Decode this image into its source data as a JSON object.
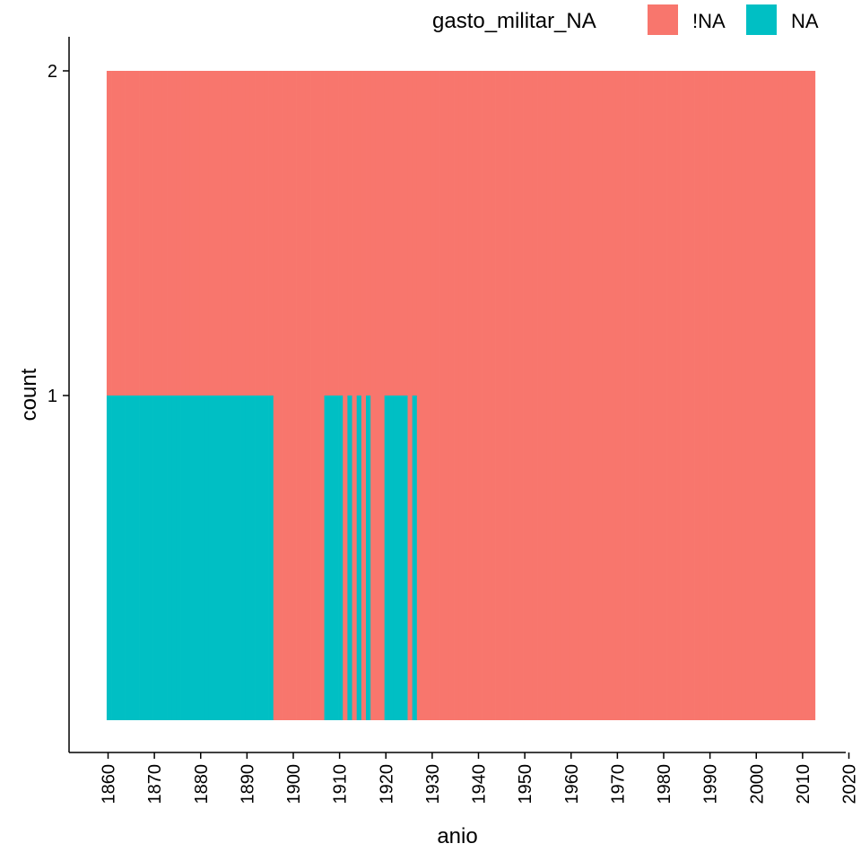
{
  "chart_data": {
    "type": "bar",
    "stacked": true,
    "title": "",
    "xlabel": "anio",
    "ylabel": "count",
    "xlim": [
      1859.5,
      2012.5
    ],
    "ylim": [
      0,
      2
    ],
    "x_ticks": [
      1860,
      1870,
      1880,
      1890,
      1900,
      1910,
      1920,
      1930,
      1940,
      1950,
      1960,
      1970,
      1980,
      1990,
      2000,
      2010,
      2020
    ],
    "y_ticks": [
      1,
      2
    ],
    "grid": false,
    "legend": {
      "title": "gasto_militar_NA",
      "placement": "top"
    },
    "series": [
      {
        "name": "!NA",
        "color": "#F8766D",
        "stack_order": "top",
        "years_count_1": [
          1860,
          1861,
          1862,
          1863,
          1864,
          1865,
          1866,
          1867,
          1868,
          1869,
          1870,
          1871,
          1872,
          1873,
          1874,
          1875,
          1876,
          1877,
          1878,
          1879,
          1880,
          1881,
          1882,
          1883,
          1884,
          1885,
          1886,
          1887,
          1888,
          1889,
          1890,
          1891,
          1892,
          1893,
          1894,
          1895,
          1907,
          1908,
          1909,
          1910,
          1911,
          1912,
          1913,
          1914,
          1915,
          1916,
          1917,
          1918,
          1919,
          1920,
          1921,
          1922,
          1923,
          1924,
          1925,
          1926
        ],
        "count_default": 2
      },
      {
        "name": "NA",
        "color": "#00BFC4",
        "stack_order": "bottom",
        "years": [
          1860,
          1861,
          1862,
          1863,
          1864,
          1865,
          1866,
          1867,
          1868,
          1869,
          1870,
          1871,
          1872,
          1873,
          1874,
          1875,
          1876,
          1877,
          1878,
          1879,
          1880,
          1881,
          1882,
          1883,
          1884,
          1885,
          1886,
          1887,
          1888,
          1889,
          1890,
          1891,
          1892,
          1893,
          1894,
          1895,
          1907,
          1908,
          1909,
          1910,
          1912,
          1914,
          1916,
          1920,
          1921,
          1922,
          1923,
          1924,
          1926
        ],
        "count": 1
      }
    ],
    "x_range_years": [
      1860,
      2012
    ]
  }
}
